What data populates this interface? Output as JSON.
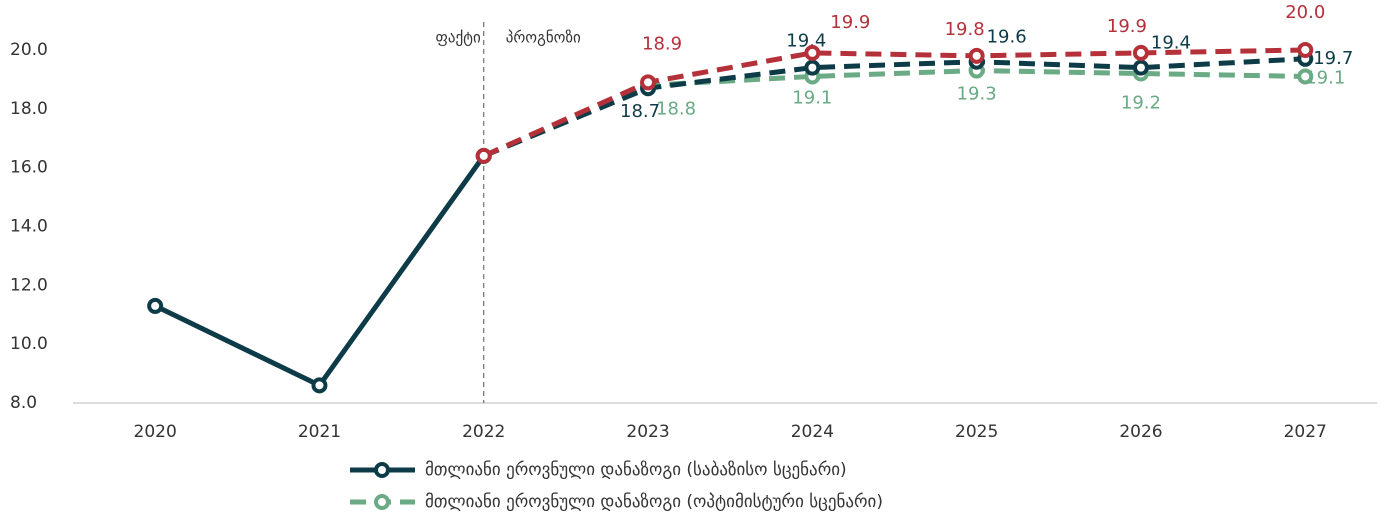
{
  "chart_data": {
    "type": "line",
    "categories": [
      "2020",
      "2021",
      "2022",
      "2023",
      "2024",
      "2025",
      "2026",
      "2027"
    ],
    "annotations": [
      "ფაქტი",
      "პროგნოზი"
    ],
    "series": [
      {
        "name": "მთლიანი ეროვნული დანაზოგი (საბაზისო სცენარი)",
        "color": "#0d3b47",
        "values": [
          11.3,
          8.6,
          16.4,
          18.7,
          19.4,
          19.6,
          19.4,
          19.7
        ],
        "value_labels": [
          null,
          null,
          null,
          "18.7",
          "19.4",
          "19.6",
          "19.4",
          "19.7"
        ]
      },
      {
        "name": "მთლიანი ეროვნული დანაზოგი (ოპტიმისტური სცენარი)",
        "color": "#6aaa84",
        "values": [
          null,
          null,
          16.4,
          18.8,
          19.1,
          19.3,
          19.2,
          19.1
        ],
        "value_labels": [
          null,
          null,
          null,
          "18.8",
          "19.1",
          "19.3",
          "19.2",
          "19.1"
        ]
      },
      {
        "color": "#b5313a",
        "values": [
          null,
          null,
          16.4,
          18.9,
          19.9,
          19.8,
          19.9,
          20.0
        ],
        "value_labels": [
          null,
          null,
          null,
          "18.9",
          "19.9",
          "19.8",
          "19.9",
          "20.0"
        ]
      }
    ],
    "ylim": [
      8,
      20.9
    ],
    "yticks": [
      {
        "value": 8,
        "label": "8.0"
      },
      {
        "value": 10,
        "label": "10.0"
      },
      {
        "value": 12,
        "label": "12.0"
      },
      {
        "value": 14,
        "label": "14.0"
      },
      {
        "value": 16,
        "label": "16.0"
      },
      {
        "value": 18,
        "label": "18.0"
      },
      {
        "value": 20,
        "label": "20.0"
      }
    ],
    "grid": false
  }
}
